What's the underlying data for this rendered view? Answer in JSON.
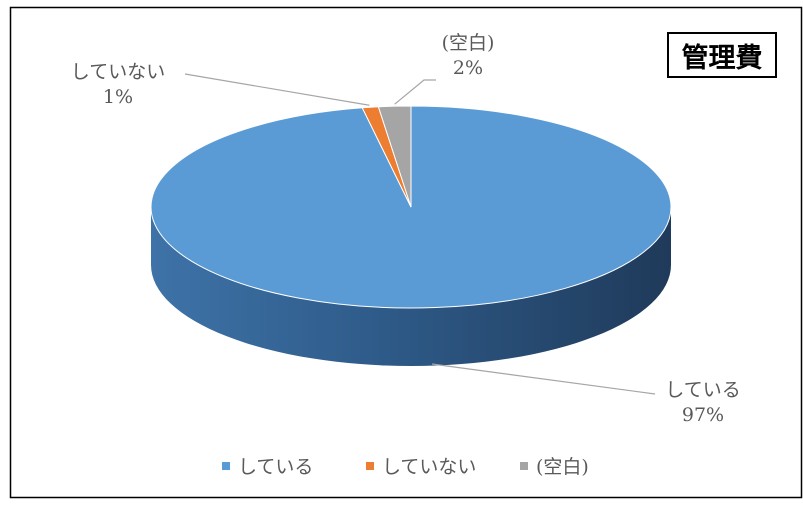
{
  "chart_data": {
    "type": "pie",
    "title": "管理費",
    "slices": [
      {
        "label": "している",
        "percent_label": "97%",
        "value": 97,
        "color": "#5B9BD5"
      },
      {
        "label": "していない",
        "percent_label": "1%",
        "value": 1,
        "color": "#ED7D31"
      },
      {
        "label": "(空白)",
        "percent_label": "2%",
        "value": 2,
        "color": "#A5A5A5"
      }
    ],
    "legend": {
      "position": "bottom",
      "items": [
        "している",
        "していない",
        "(空白)"
      ]
    },
    "style": "3d-pie"
  }
}
